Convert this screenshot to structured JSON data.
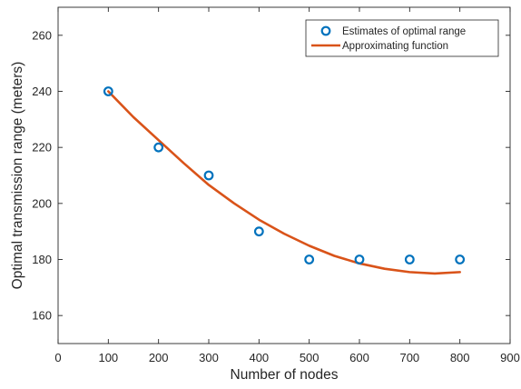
{
  "chart_data": {
    "type": "scatter",
    "xlabel": "Number of nodes",
    "ylabel": "Optimal transmission range (meters)",
    "xlim": [
      0,
      900
    ],
    "ylim": [
      150,
      270
    ],
    "xticks": [
      "0",
      "100",
      "200",
      "300",
      "400",
      "500",
      "600",
      "700",
      "800",
      "900"
    ],
    "yticks": [
      "160",
      "180",
      "200",
      "220",
      "240",
      "260"
    ],
    "grid": false,
    "legend_position": "top-right",
    "series": [
      {
        "name": "Estimates of optimal range",
        "kind": "markers",
        "marker": "circle",
        "color": "#0072BD",
        "x": [
          100,
          200,
          300,
          400,
          500,
          600,
          700,
          800
        ],
        "y": [
          240,
          220,
          210,
          190,
          180,
          180,
          180,
          180
        ]
      },
      {
        "name": "Approximating function",
        "kind": "line",
        "color": "#D95319",
        "x": [
          100,
          150,
          200,
          250,
          300,
          350,
          400,
          450,
          500,
          550,
          600,
          650,
          700,
          750,
          800
        ],
        "y": [
          240,
          230.8,
          222.6,
          214.4,
          206.6,
          200.1,
          194.2,
          189.2,
          184.9,
          181.3,
          178.6,
          176.7,
          175.5,
          175.0,
          175.5
        ]
      }
    ]
  }
}
